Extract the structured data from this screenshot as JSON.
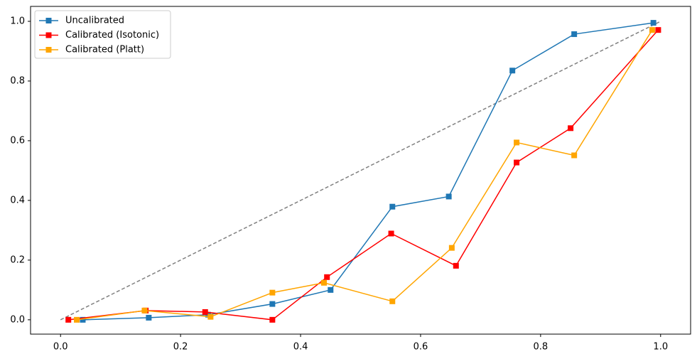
{
  "chart_data": {
    "type": "line",
    "series": [
      {
        "name": "Uncalibrated",
        "color": "#1f77b4",
        "x": [
          0.037,
          0.147,
          0.246,
          0.353,
          0.45,
          0.553,
          0.647,
          0.753,
          0.856,
          0.988
        ],
        "values": [
          0.0,
          0.007,
          0.017,
          0.053,
          0.1,
          0.379,
          0.413,
          0.835,
          0.957,
          0.995
        ]
      },
      {
        "name": "Calibrated (Isotonic)",
        "color": "#ff0000",
        "x": [
          0.013,
          0.142,
          0.241,
          0.353,
          0.444,
          0.551,
          0.659,
          0.76,
          0.85,
          0.996
        ],
        "values": [
          0.0,
          0.031,
          0.026,
          0.0,
          0.143,
          0.289,
          0.181,
          0.527,
          0.642,
          0.971
        ]
      },
      {
        "name": "Calibrated (Platt)",
        "color": "#ffa500",
        "x": [
          0.027,
          0.14,
          0.25,
          0.353,
          0.439,
          0.553,
          0.652,
          0.76,
          0.856,
          0.986
        ],
        "values": [
          0.0,
          0.031,
          0.01,
          0.091,
          0.124,
          0.062,
          0.241,
          0.594,
          0.551,
          0.971
        ]
      }
    ],
    "reference_line": {
      "x": [
        0,
        1
      ],
      "values": [
        0,
        1
      ],
      "color": "#808080",
      "dashed": true
    },
    "xlim": [
      -0.05,
      1.05
    ],
    "ylim": [
      -0.048,
      1.05
    ],
    "xticks": [
      {
        "value": 0,
        "label": "0.0"
      },
      0.2,
      0.4,
      0.6,
      0.8,
      {
        "value": 1,
        "label": "1.0"
      }
    ],
    "yticks": [
      {
        "value": 0,
        "label": "0.0"
      },
      0.2,
      0.4,
      0.6,
      0.8,
      {
        "value": 1,
        "label": "1.0"
      }
    ],
    "grid": false,
    "legend": "upper left"
  }
}
